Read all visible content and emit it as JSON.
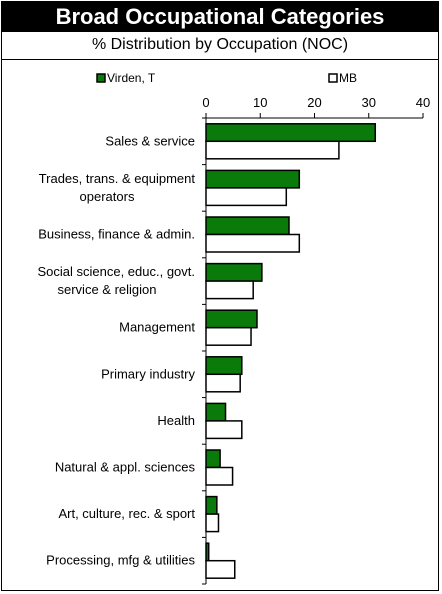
{
  "title": "Broad Occupational Categories",
  "subtitle": "% Distribution by Occupation (NOC)",
  "chart_data": {
    "type": "bar",
    "orientation": "horizontal",
    "categories": [
      [
        "Sales & service"
      ],
      [
        "Trades, trans. & equipment",
        "operators"
      ],
      [
        "Business, finance & admin."
      ],
      [
        "Social science, educ., govt.",
        "service & religion"
      ],
      [
        "Management"
      ],
      [
        "Primary industry"
      ],
      [
        "Health"
      ],
      [
        "Natural & appl. sciences"
      ],
      [
        "Art, culture, rec. & sport"
      ],
      [
        "Processing, mfg & utilities"
      ]
    ],
    "series": [
      {
        "name": "Virden, T",
        "color": "#0a7a0a",
        "values": [
          31.2,
          17.2,
          15.3,
          10.3,
          9.4,
          6.6,
          3.6,
          2.6,
          2.0,
          0.5
        ]
      },
      {
        "name": "MB",
        "color": "#ffffff",
        "values": [
          24.5,
          14.8,
          17.2,
          8.7,
          8.3,
          6.3,
          6.6,
          4.9,
          2.3,
          5.3
        ]
      }
    ],
    "xticks": [
      0,
      10,
      20,
      30,
      40
    ],
    "xlim": [
      0,
      40
    ],
    "legend_position": "top"
  }
}
